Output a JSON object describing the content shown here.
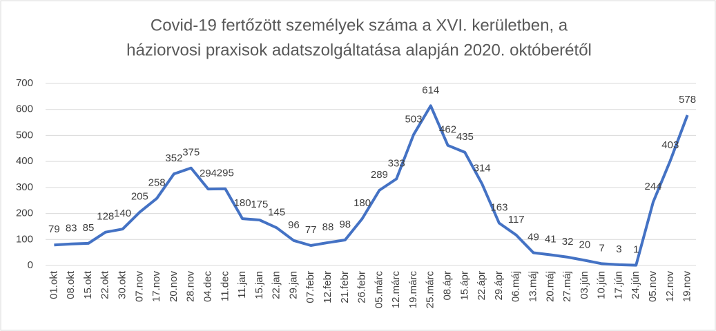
{
  "chart_data": {
    "type": "line",
    "title": [
      "Covid-19 fertőzött személyek száma a XVI. kerületben, a",
      "háziorvosi praxisok adatszolgáltatása alapján 2020. októberétől"
    ],
    "categories": [
      "01.okt",
      "08.okt",
      "15.okt",
      "22.okt",
      "30.okt",
      "07.nov",
      "17.nov",
      "20.nov",
      "28.nov",
      "04.dec",
      "11.dec",
      "11.jan",
      "15.jan",
      "22.jan",
      "29.jan",
      "07.febr",
      "12.febr",
      "21.febr",
      "26.febr",
      "05.márc",
      "12.márc",
      "19.márc",
      "25.márc",
      "08.ápr",
      "15.ápr",
      "22.ápr",
      "29.ápr",
      "06.máj",
      "13.máj",
      "20.máj",
      "27.máj",
      "03.jún",
      "10.jún",
      "17.jún",
      "24.jún",
      "05.nov",
      "12.nov",
      "19.nov"
    ],
    "values": [
      79,
      83,
      85,
      128,
      140,
      205,
      258,
      352,
      375,
      294,
      295,
      180,
      175,
      145,
      96,
      77,
      88,
      98,
      180,
      289,
      333,
      503,
      614,
      462,
      435,
      314,
      163,
      117,
      49,
      41,
      32,
      20,
      7,
      3,
      1,
      244,
      403,
      578
    ],
    "color": "#4472c4",
    "ylim": [
      0,
      700
    ],
    "yticks": [
      0,
      100,
      200,
      300,
      400,
      500,
      600,
      700
    ],
    "grid": true
  }
}
